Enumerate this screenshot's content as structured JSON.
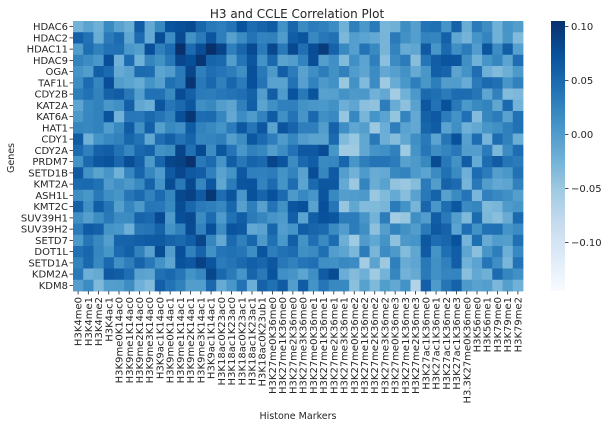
{
  "chart_data": {
    "type": "heatmap",
    "title": "H3 and CCLE Correlation Plot",
    "xlabel": "Histone Markers",
    "ylabel": "Genes",
    "y_tick_labels": [
      "HDAC6",
      "HDAC2",
      "HDAC11",
      "HDAC9",
      "OGA",
      "TAF1L",
      "CDY2B",
      "KAT2A",
      "KAT6A",
      "HAT1",
      "CDY1",
      "CDY2A",
      "PRDM7",
      "SETD1B",
      "KMT2A",
      "ASH1L",
      "KMT2C",
      "SUV39H1",
      "SUV39H2",
      "SETD7",
      "DOT1L",
      "SETD1A",
      "KDM2A",
      "KDM8"
    ],
    "x_tick_labels": [
      "H3K4me0",
      "H3K4me1",
      "H3K4me2",
      "H3K4ac1",
      "H3K9me0K14ac0",
      "H3K9me1K14ac0",
      "H3K9me2K14ac0",
      "H3K9me3K14ac0",
      "H3K9ac1K14ac0",
      "H3K9me0K14ac1",
      "H3K9me1K14ac1",
      "H3K9me2K14ac1",
      "H3K9me3K14ac1",
      "H3K9ac1K14ac1",
      "H3K18ac0K23ac0",
      "H3K18ac1K23ac0",
      "H3K18ac0K23ac1",
      "H3K18ac1K23ac1",
      "H3K18ac0K23ub1",
      "H3K27me0K36me0",
      "H3K27me1K36me0",
      "H3K27me2K36me0",
      "H3K27me3K36me0",
      "H3K27me0K36me1",
      "H3K27me1K36me1",
      "H3K27me2K36me1",
      "H3K27me3K36me1",
      "H3K27me0K36me2",
      "H3K27me1K36me2",
      "H3K27me2K36me2",
      "H3K27me3K36me2",
      "H3K27me0K36me3",
      "H3K27me1K36me3",
      "H3K27me2K36me3",
      "H3K27ac1K36me0",
      "H3K27ac1K36me1",
      "H3K27ac1K36me2",
      "H3K27ac1K36me3",
      "H3.3K27me0K36me0",
      "H3K56me0",
      "H3K56me1",
      "H3K79me0",
      "H3K79me1",
      "H3K79me2"
    ],
    "colorbar_ticks": [
      0.1,
      0.05,
      0.0,
      -0.05,
      -0.1
    ],
    "colorbar_range": [
      -0.145,
      0.105
    ],
    "colormap": "Blues",
    "colormap_stops": [
      "#f7fbff",
      "#deebf7",
      "#c6dbef",
      "#9ecae1",
      "#6baed6",
      "#4292c6",
      "#2171b5",
      "#08519c",
      "#08306b"
    ]
  }
}
